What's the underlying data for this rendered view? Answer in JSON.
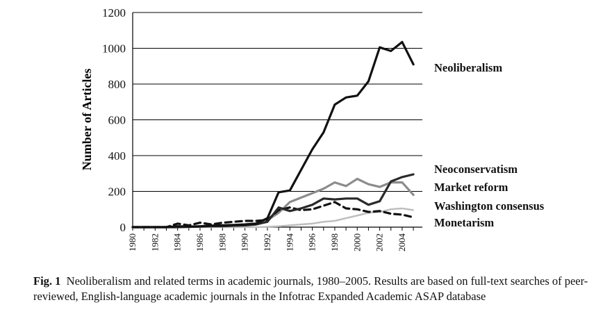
{
  "chart_data": {
    "type": "line",
    "title": "",
    "xlabel": "",
    "ylabel": "Number of Articles",
    "ylim": [
      0,
      1200
    ],
    "yticks": [
      0,
      200,
      400,
      600,
      800,
      1000,
      1200
    ],
    "grid": "horizontal",
    "x": [
      1980,
      1981,
      1982,
      1983,
      1984,
      1985,
      1986,
      1987,
      1988,
      1989,
      1990,
      1991,
      1992,
      1993,
      1994,
      1995,
      1996,
      1997,
      1998,
      1999,
      2000,
      2001,
      2002,
      2003,
      2004,
      2005
    ],
    "xtick_labels": [
      "1980",
      "1982",
      "1984",
      "1986",
      "1988",
      "1990",
      "1992",
      "1994",
      "1996",
      "1998",
      "2000",
      "2002",
      "2004"
    ],
    "legend_placement": "right (direct labels)",
    "series": [
      {
        "name": "Neoliberalism",
        "label": "Neoliberalism",
        "style": "solid-thick",
        "color": "#111111",
        "values": [
          0,
          0,
          0,
          0,
          5,
          3,
          5,
          8,
          10,
          12,
          15,
          20,
          50,
          195,
          205,
          320,
          435,
          530,
          685,
          725,
          735,
          815,
          1005,
          985,
          1035,
          910
        ]
      },
      {
        "name": "Neoconservatism",
        "label": "Neoconservatism",
        "style": "solid-thick",
        "color": "#2a2a2a",
        "values": [
          0,
          0,
          0,
          0,
          0,
          2,
          3,
          5,
          5,
          8,
          10,
          15,
          30,
          110,
          90,
          105,
          125,
          160,
          155,
          160,
          160,
          125,
          145,
          255,
          280,
          295
        ]
      },
      {
        "name": "Market reform",
        "label": "Market reform",
        "style": "solid-thick",
        "color": "#8c8c8c",
        "values": [
          0,
          0,
          0,
          0,
          0,
          2,
          3,
          5,
          8,
          10,
          15,
          20,
          40,
          80,
          140,
          165,
          190,
          215,
          250,
          230,
          270,
          240,
          225,
          250,
          250,
          180
        ]
      },
      {
        "name": "Washington consensus",
        "label": "Washington consensus",
        "style": "dotted",
        "color": "#bdbdbd",
        "values": [
          0,
          0,
          0,
          0,
          0,
          0,
          0,
          0,
          0,
          0,
          0,
          0,
          2,
          5,
          10,
          15,
          20,
          30,
          35,
          50,
          65,
          80,
          85,
          100,
          105,
          95
        ]
      },
      {
        "name": "Monetarism",
        "label": "Monetarism",
        "style": "dashed",
        "color": "#111111",
        "values": [
          0,
          0,
          0,
          0,
          20,
          10,
          25,
          15,
          25,
          30,
          35,
          35,
          40,
          95,
          110,
          95,
          100,
          120,
          140,
          105,
          100,
          85,
          90,
          75,
          70,
          55
        ]
      }
    ]
  },
  "caption": {
    "fig_label": "Fig. 1",
    "text": "Neoliberalism and related terms in academic journals, 1980–2005. Results are based on full-text searches of peer-reviewed, English-language academic journals in the Infotrac Expanded Academic ASAP database"
  }
}
